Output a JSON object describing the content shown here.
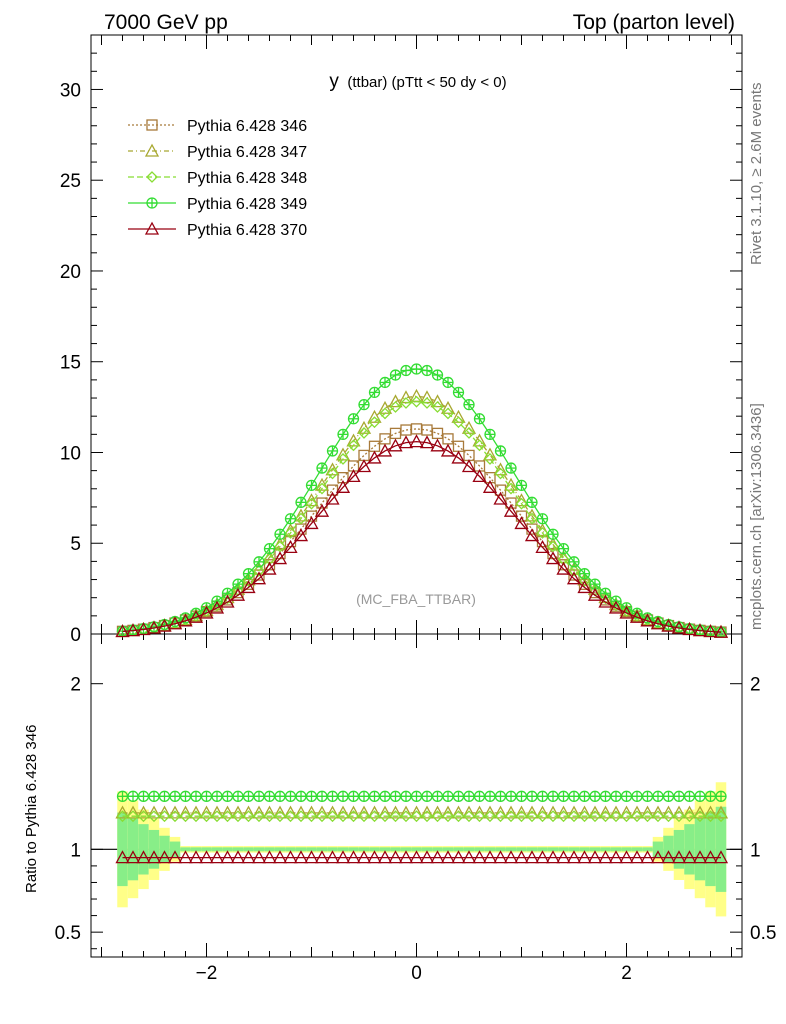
{
  "header": {
    "left": "7000 GeV pp",
    "right": "Top (parton level)"
  },
  "side_labels": {
    "rivet": "Rivet 3.1.10, ≥ 2.6M events",
    "mcplots": "mcplots.cern.ch [arXiv:1306.3436]"
  },
  "chart_data": [
    {
      "type": "line",
      "panel": "main",
      "title_main": "y",
      "title_rest": "(ttbar) (pTtt < 50 dy < 0)",
      "watermark": "(MC_FBA_TTBAR)",
      "xlabel": "",
      "ylabel": "",
      "xlim": [
        -3.1,
        3.1
      ],
      "ylim": [
        0,
        33
      ],
      "yticks": [
        0,
        5,
        10,
        15,
        20,
        25,
        30
      ],
      "legend_position": "top-left",
      "grid": false,
      "series": [
        {
          "name": "Pythia 6.428 346",
          "color": "#a87a3a",
          "marker": "square",
          "dash": "2,2",
          "amplitude": 11.3,
          "width": 0.95
        },
        {
          "name": "Pythia 6.428 347",
          "color": "#a8a830",
          "marker": "triangle",
          "dash": "5,3,1,3",
          "amplitude": 13.1,
          "width": 0.93
        },
        {
          "name": "Pythia 6.428 348",
          "color": "#88dd33",
          "marker": "diamond",
          "dash": "6,3",
          "amplitude": 12.8,
          "width": 0.93
        },
        {
          "name": "Pythia 6.428 349",
          "color": "#33dd33",
          "marker": "cross-circle",
          "dash": "",
          "amplitude": 14.6,
          "width": 0.93
        },
        {
          "name": "Pythia 6.428 370",
          "color": "#990011",
          "marker": "triangle",
          "dash": "",
          "amplitude": 10.6,
          "width": 0.95
        }
      ]
    },
    {
      "type": "line",
      "panel": "ratio",
      "xlabel": "",
      "ylabel": "Ratio to Pythia 6.428 346",
      "xlim": [
        -3.1,
        3.1
      ],
      "ylim": [
        0.35,
        2.3
      ],
      "yticks": [
        0.5,
        1,
        2
      ],
      "ytick_labels": [
        "0.5",
        "1",
        "2"
      ],
      "xticks": [
        -2,
        0,
        2
      ],
      "xtick_labels": [
        "−2",
        "0",
        "2"
      ],
      "reference_line": 1,
      "series": [
        {
          "name": "Pythia 6.428 347",
          "ratio": 1.22
        },
        {
          "name": "Pythia 6.428 348",
          "ratio": 1.2
        },
        {
          "name": "Pythia 6.428 349",
          "ratio": 1.32
        },
        {
          "name": "Pythia 6.428 370",
          "ratio": 0.95
        }
      ]
    }
  ]
}
